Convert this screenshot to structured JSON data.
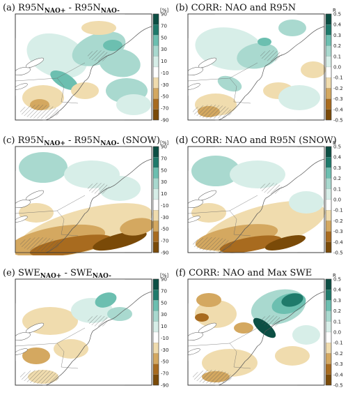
{
  "colors": {
    "dark_brown": "#7a4a08",
    "brown": "#a86b1f",
    "tan": "#d4a860",
    "light_tan": "#f0dcae",
    "white": "#ffffff",
    "pale_teal": "#d7eee8",
    "light_teal": "#a9d9cf",
    "teal": "#6cbfb0",
    "dark_teal": "#1f7a6b",
    "deep_teal": "#0c4f44"
  },
  "panels": [
    {
      "id": "a",
      "letter": "(a)",
      "title": {
        "p1": "R95N",
        "s1": "NAO+",
        "p2": " - R95N",
        "s2": "NAO-",
        "p3": ""
      },
      "colorbar": {
        "unit": "[%]",
        "ticks": [
          "90",
          "70",
          "50",
          "30",
          "10",
          "-10",
          "-30",
          "-50",
          "-70",
          "-90"
        ]
      }
    },
    {
      "id": "b",
      "letter": "(b)",
      "title": {
        "p1": "CORR: NAO and R95N",
        "s1": "",
        "p2": "",
        "s2": "",
        "p3": ""
      },
      "colorbar": {
        "unit": "R",
        "ticks": [
          "0.5",
          "0.4",
          "0.3",
          "0.2",
          "0.1",
          "0.0",
          "-0.1",
          "-0.2",
          "-0.3",
          "-0.4",
          "-0.5"
        ]
      }
    },
    {
      "id": "c",
      "letter": "(c)",
      "title": {
        "p1": "R95N",
        "s1": "NAO+",
        "p2": " - R95N",
        "s2": "NAO-",
        "p3": " (SNOW)"
      },
      "colorbar": {
        "unit": "[%]",
        "ticks": [
          "90",
          "70",
          "50",
          "30",
          "10",
          "-10",
          "-30",
          "-50",
          "-70",
          "-90"
        ]
      }
    },
    {
      "id": "d",
      "letter": "(d)",
      "title": {
        "p1": "CORR: NAO and R95N (SNOW)",
        "s1": "",
        "p2": "",
        "s2": "",
        "p3": ""
      },
      "colorbar": {
        "unit": "R",
        "ticks": [
          "0.5",
          "0.4",
          "0.3",
          "0.2",
          "0.1",
          "0.0",
          "-0.1",
          "-0.2",
          "-0.3",
          "-0.4",
          "-0.5"
        ]
      }
    },
    {
      "id": "e",
      "letter": "(e)",
      "title": {
        "p1": "SWE",
        "s1": "NAO+",
        "p2": " - SWE",
        "s2": "NAO-",
        "p3": ""
      },
      "colorbar": {
        "unit": "[%]",
        "ticks": [
          "90",
          "70",
          "50",
          "30",
          "10",
          "-10",
          "-30",
          "-50",
          "-70",
          "-90"
        ]
      }
    },
    {
      "id": "f",
      "letter": "(f)",
      "title": {
        "p1": "CORR: NAO and Max SWE",
        "s1": "",
        "p2": "",
        "s2": "",
        "p3": ""
      },
      "colorbar": {
        "unit": "R",
        "ticks": [
          "0.5",
          "0.4",
          "0.3",
          "0.2",
          "0.1",
          "0.0",
          "-0.1",
          "-0.2",
          "-0.3",
          "-0.4",
          "-0.5"
        ]
      }
    }
  ]
}
